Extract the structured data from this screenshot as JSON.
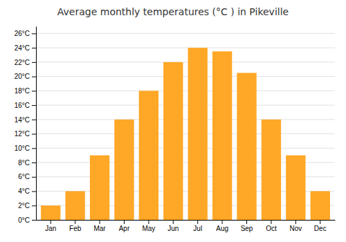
{
  "chart_data": {
    "type": "bar",
    "title": "Average monthly temperatures (°C ) in Pikeville",
    "categories": [
      "Jan",
      "Feb",
      "Mar",
      "Apr",
      "May",
      "Jun",
      "Jul",
      "Aug",
      "Sep",
      "Oct",
      "Nov",
      "Dec"
    ],
    "values": [
      2,
      4,
      9,
      14,
      18,
      22,
      24,
      23.5,
      20.5,
      14,
      9,
      4
    ],
    "color": "#FFA726",
    "ylim": [
      0,
      27
    ],
    "yticks": [
      {
        "value": 0,
        "label": "0°C"
      },
      {
        "value": 2,
        "label": "2°C"
      },
      {
        "value": 4,
        "label": "4°C"
      },
      {
        "value": 6,
        "label": "6°C"
      },
      {
        "value": 8,
        "label": "8°C"
      },
      {
        "value": 10,
        "label": "10°C"
      },
      {
        "value": 12,
        "label": "12°C"
      },
      {
        "value": 14,
        "label": "14°C"
      },
      {
        "value": 16,
        "label": "16°C"
      },
      {
        "value": 18,
        "label": "18°C"
      },
      {
        "value": 20,
        "label": "20°C"
      },
      {
        "value": 22,
        "label": "22°C"
      },
      {
        "value": 24,
        "label": "24°C"
      },
      {
        "value": 26,
        "label": "26°C"
      }
    ],
    "grid": true
  }
}
